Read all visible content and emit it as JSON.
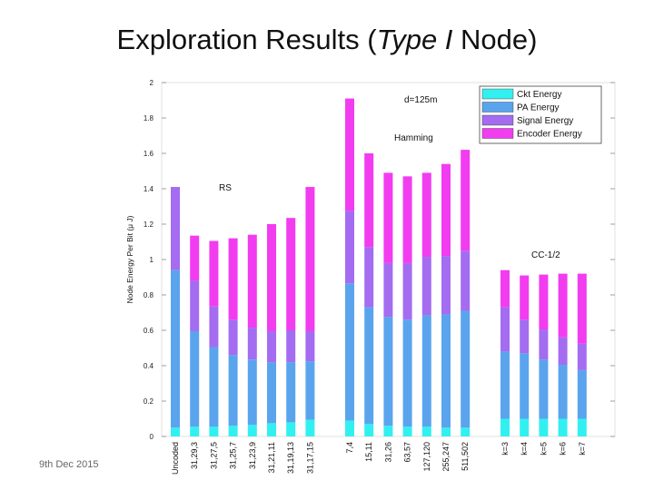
{
  "slide": {
    "title_prefix": "Exploration Results (",
    "title_italic": "Type I",
    "title_suffix": " Node)",
    "footer_date": "9th Dec 2015"
  },
  "colors": {
    "ckt": "#33f0f0",
    "pa": "#5aa4ee",
    "signal": "#a46cf0",
    "encoder": "#f23cf0"
  },
  "chart_data": {
    "type": "bar",
    "stacked": true,
    "ylabel": "Node Energy Per Bit (μ J)",
    "ylim": [
      0,
      2
    ],
    "yticks": [
      0,
      0.2,
      0.4,
      0.6,
      0.8,
      1,
      1.2,
      1.4,
      1.6,
      1.8,
      2
    ],
    "ytick_labels": [
      "0",
      "0.2",
      "0.4",
      "0.6",
      "0.8",
      "1",
      "1.2",
      "1.4",
      "1.6",
      "1.8",
      "2"
    ],
    "grid": false,
    "legend_position": "top-right",
    "annotations": [
      "d=125m",
      "Hamming",
      "RS",
      "CC-1/2"
    ],
    "categories": [
      "Uncoded",
      "31,29,3",
      "31,27,5",
      "31,25,7",
      "31,23,9",
      "31,21,11",
      "31,19,13",
      "31,17,15",
      "7,4",
      "15,11",
      "31,26",
      "63,57",
      "127,120",
      "255,247",
      "511,502",
      "k=3",
      "k=4",
      "k=5",
      "k=6",
      "k=7"
    ],
    "series": [
      {
        "name": "Ckt Energy",
        "values": [
          0.05,
          0.055,
          0.055,
          0.06,
          0.065,
          0.075,
          0.08,
          0.095,
          0.09,
          0.07,
          0.06,
          0.055,
          0.055,
          0.05,
          0.05,
          0.1,
          0.1,
          0.1,
          0.1,
          0.1
        ]
      },
      {
        "name": "PA Energy",
        "values": [
          0.89,
          0.54,
          0.45,
          0.4,
          0.37,
          0.345,
          0.34,
          0.33,
          0.775,
          0.66,
          0.615,
          0.605,
          0.63,
          0.64,
          0.66,
          0.38,
          0.37,
          0.335,
          0.305,
          0.275
        ]
      },
      {
        "name": "Signal Energy",
        "values": [
          0.47,
          0.285,
          0.23,
          0.2,
          0.18,
          0.175,
          0.18,
          0.17,
          0.41,
          0.34,
          0.305,
          0.32,
          0.33,
          0.33,
          0.34,
          0.25,
          0.19,
          0.17,
          0.155,
          0.15
        ]
      },
      {
        "name": "Encoder Energy",
        "values": [
          0,
          0.255,
          0.37,
          0.46,
          0.525,
          0.605,
          0.635,
          0.815,
          0.635,
          0.53,
          0.51,
          0.49,
          0.475,
          0.52,
          0.57,
          0.21,
          0.25,
          0.31,
          0.36,
          0.395
        ]
      }
    ]
  }
}
